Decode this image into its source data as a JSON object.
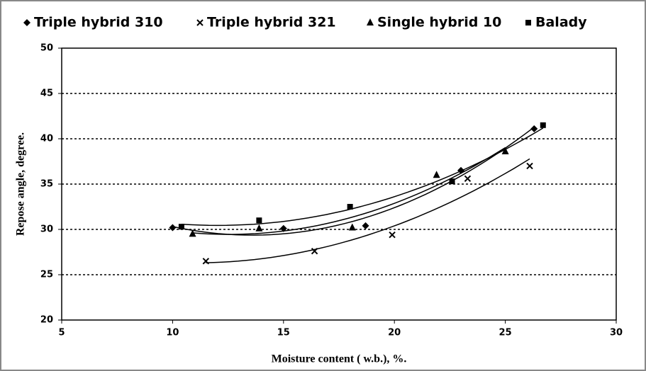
{
  "chart_data": {
    "type": "scatter",
    "xlabel": "Moisture content ( w.b.), %.",
    "ylabel": "Repose angle, degree.",
    "xlim": [
      5,
      30
    ],
    "xticks": [
      5,
      10,
      15,
      20,
      25,
      30
    ],
    "ylim": [
      20,
      50
    ],
    "yticks": [
      20,
      25,
      30,
      35,
      40,
      45,
      50
    ],
    "grid": true,
    "legend": "top",
    "series": [
      {
        "name": "Triple hybrid 310",
        "marker": "diamond",
        "color": "#000000",
        "x": [
          10,
          15,
          18.7,
          23,
          26.3
        ],
        "values": [
          30.2,
          30.1,
          30.4,
          36.5,
          41.1
        ]
      },
      {
        "name": "Triple hybrid 321",
        "marker": "x",
        "color": "#000000",
        "x": [
          11.5,
          16.4,
          19.9,
          23.3,
          26.1
        ],
        "values": [
          26.5,
          27.6,
          29.4,
          35.6,
          37
        ]
      },
      {
        "name": "Single hybrid 10",
        "marker": "triangle",
        "color": "#000000",
        "x": [
          10.9,
          13.9,
          18.1,
          21.9,
          25
        ],
        "values": [
          29.5,
          30.1,
          30.2,
          36,
          38.6
        ]
      },
      {
        "name": "Balady",
        "marker": "square",
        "color": "#000000",
        "x": [
          10.4,
          13.9,
          18,
          22.6,
          26.7
        ],
        "values": [
          30.3,
          31,
          32.5,
          35.3,
          41.5
        ]
      }
    ]
  }
}
